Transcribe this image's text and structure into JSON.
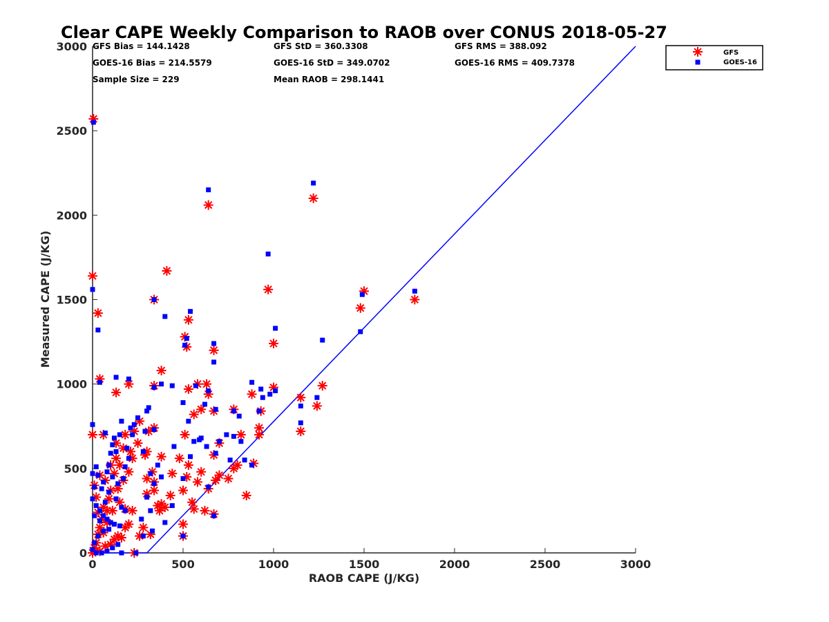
{
  "chart_data": {
    "type": "scatter",
    "title": "Clear CAPE Weekly Comparison to RAOB over CONUS 2018-05-27",
    "xlabel": "RAOB CAPE (J/KG)",
    "ylabel": "Measured CAPE (J/KG)",
    "xlim": [
      0,
      3000
    ],
    "ylim": [
      0,
      3000
    ],
    "x_ticks": [
      "0",
      "500",
      "1000",
      "1500",
      "2000",
      "2500",
      "3000"
    ],
    "y_ticks": [
      "0",
      "500",
      "1000",
      "1500",
      "2000",
      "2500",
      "3000"
    ],
    "grid": false,
    "legend_placement": "top-right",
    "stats": [
      [
        "GFS Bias = 144.1428",
        "GFS StD = 360.3308",
        "GFS RMS = 388.092"
      ],
      [
        "GOES-16 Bias = 214.5579",
        "GOES-16 StD = 349.0702",
        "GOES-16 RMS = 409.7378"
      ],
      [
        "Sample Size = 229",
        "Mean RAOB = 298.1441",
        ""
      ]
    ],
    "reference_line": {
      "color": "#0000ff",
      "points": [
        [
          0,
          0
        ],
        [
          300,
          0
        ],
        [
          3000,
          3000
        ]
      ]
    },
    "series": [
      {
        "name": "GFS",
        "marker": "asterisk",
        "color": "#ff0000",
        "points": [
          [
            5,
            2570
          ],
          [
            0,
            1640
          ],
          [
            30,
            1420
          ],
          [
            40,
            1030
          ],
          [
            130,
            950
          ],
          [
            200,
            1000
          ],
          [
            0,
            700
          ],
          [
            60,
            700
          ],
          [
            410,
            1670
          ],
          [
            340,
            1500
          ],
          [
            380,
            1080
          ],
          [
            340,
            990
          ],
          [
            530,
            1380
          ],
          [
            510,
            1280
          ],
          [
            520,
            1220
          ],
          [
            580,
            1000
          ],
          [
            640,
            2060
          ],
          [
            670,
            1200
          ],
          [
            630,
            1000
          ],
          [
            530,
            970
          ],
          [
            640,
            940
          ],
          [
            600,
            850
          ],
          [
            670,
            840
          ],
          [
            560,
            820
          ],
          [
            970,
            1560
          ],
          [
            1000,
            1240
          ],
          [
            1000,
            980
          ],
          [
            880,
            940
          ],
          [
            930,
            840
          ],
          [
            780,
            850
          ],
          [
            820,
            700
          ],
          [
            920,
            700
          ],
          [
            920,
            740
          ],
          [
            1150,
            920
          ],
          [
            1270,
            990
          ],
          [
            1240,
            870
          ],
          [
            1150,
            720
          ],
          [
            1500,
            1550
          ],
          [
            1480,
            1450
          ],
          [
            1220,
            2100
          ],
          [
            1780,
            1500
          ],
          [
            850,
            340
          ],
          [
            890,
            530
          ],
          [
            800,
            520
          ],
          [
            780,
            500
          ],
          [
            750,
            440
          ],
          [
            700,
            460
          ],
          [
            680,
            430
          ],
          [
            670,
            580
          ],
          [
            700,
            650
          ],
          [
            670,
            230
          ],
          [
            620,
            250
          ],
          [
            640,
            380
          ],
          [
            600,
            480
          ],
          [
            580,
            420
          ],
          [
            550,
            300
          ],
          [
            560,
            260
          ],
          [
            500,
            370
          ],
          [
            520,
            450
          ],
          [
            530,
            520
          ],
          [
            510,
            700
          ],
          [
            500,
            170
          ],
          [
            500,
            100
          ],
          [
            440,
            470
          ],
          [
            430,
            340
          ],
          [
            400,
            270
          ],
          [
            380,
            570
          ],
          [
            340,
            740
          ],
          [
            310,
            720
          ],
          [
            300,
            600
          ],
          [
            330,
            480
          ],
          [
            290,
            580
          ],
          [
            300,
            440
          ],
          [
            340,
            420
          ],
          [
            340,
            370
          ],
          [
            300,
            350
          ],
          [
            320,
            110
          ],
          [
            280,
            150
          ],
          [
            260,
            100
          ],
          [
            230,
            0
          ],
          [
            250,
            650
          ],
          [
            220,
            560
          ],
          [
            200,
            480
          ],
          [
            170,
            430
          ],
          [
            150,
            520
          ],
          [
            170,
            620
          ],
          [
            130,
            560
          ],
          [
            120,
            470
          ],
          [
            100,
            370
          ],
          [
            140,
            380
          ],
          [
            90,
            320
          ],
          [
            80,
            250
          ],
          [
            60,
            270
          ],
          [
            50,
            200
          ],
          [
            40,
            150
          ],
          [
            30,
            110
          ],
          [
            20,
            60
          ],
          [
            10,
            30
          ],
          [
            0,
            0
          ],
          [
            40,
            10
          ],
          [
            70,
            40
          ],
          [
            100,
            50
          ],
          [
            120,
            80
          ],
          [
            140,
            100
          ],
          [
            160,
            90
          ],
          [
            180,
            150
          ],
          [
            200,
            170
          ],
          [
            220,
            250
          ],
          [
            180,
            260
          ],
          [
            150,
            300
          ],
          [
            110,
            250
          ],
          [
            80,
            180
          ],
          [
            60,
            120
          ],
          [
            30,
            240
          ],
          [
            20,
            330
          ],
          [
            10,
            400
          ],
          [
            40,
            460
          ],
          [
            70,
            430
          ],
          [
            100,
            520
          ],
          [
            130,
            650
          ],
          [
            180,
            700
          ],
          [
            230,
            720
          ],
          [
            260,
            780
          ],
          [
            210,
            600
          ],
          [
            380,
            290
          ],
          [
            370,
            250
          ],
          [
            360,
            280
          ],
          [
            480,
            560
          ]
        ]
      },
      {
        "name": "GOES-16",
        "marker": "square",
        "color": "#0000ff",
        "points": [
          [
            5,
            2550
          ],
          [
            0,
            1560
          ],
          [
            30,
            1320
          ],
          [
            40,
            1010
          ],
          [
            130,
            1040
          ],
          [
            200,
            1030
          ],
          [
            0,
            760
          ],
          [
            70,
            710
          ],
          [
            340,
            1500
          ],
          [
            400,
            1400
          ],
          [
            380,
            1000
          ],
          [
            440,
            990
          ],
          [
            340,
            980
          ],
          [
            540,
            1430
          ],
          [
            520,
            1270
          ],
          [
            510,
            1230
          ],
          [
            640,
            2150
          ],
          [
            670,
            1240
          ],
          [
            670,
            1130
          ],
          [
            570,
            990
          ],
          [
            640,
            960
          ],
          [
            620,
            880
          ],
          [
            680,
            850
          ],
          [
            590,
            670
          ],
          [
            970,
            1770
          ],
          [
            1010,
            1330
          ],
          [
            980,
            940
          ],
          [
            1010,
            960
          ],
          [
            880,
            1010
          ],
          [
            930,
            970
          ],
          [
            940,
            920
          ],
          [
            780,
            840
          ],
          [
            810,
            810
          ],
          [
            920,
            840
          ],
          [
            1150,
            870
          ],
          [
            1240,
            920
          ],
          [
            1150,
            770
          ],
          [
            1270,
            1260
          ],
          [
            1220,
            2190
          ],
          [
            1490,
            1530
          ],
          [
            1480,
            1310
          ],
          [
            1780,
            1550
          ],
          [
            840,
            550
          ],
          [
            880,
            520
          ],
          [
            820,
            660
          ],
          [
            780,
            690
          ],
          [
            740,
            700
          ],
          [
            700,
            660
          ],
          [
            680,
            590
          ],
          [
            760,
            550
          ],
          [
            670,
            220
          ],
          [
            640,
            390
          ],
          [
            630,
            630
          ],
          [
            600,
            680
          ],
          [
            560,
            660
          ],
          [
            540,
            570
          ],
          [
            530,
            780
          ],
          [
            500,
            890
          ],
          [
            500,
            440
          ],
          [
            500,
            100
          ],
          [
            450,
            630
          ],
          [
            440,
            280
          ],
          [
            400,
            180
          ],
          [
            380,
            450
          ],
          [
            360,
            520
          ],
          [
            340,
            410
          ],
          [
            340,
            730
          ],
          [
            310,
            860
          ],
          [
            300,
            840
          ],
          [
            290,
            720
          ],
          [
            280,
            600
          ],
          [
            320,
            470
          ],
          [
            300,
            330
          ],
          [
            320,
            250
          ],
          [
            330,
            130
          ],
          [
            280,
            100
          ],
          [
            270,
            200
          ],
          [
            240,
            0
          ],
          [
            250,
            800
          ],
          [
            230,
            760
          ],
          [
            210,
            740
          ],
          [
            220,
            700
          ],
          [
            190,
            620
          ],
          [
            200,
            560
          ],
          [
            180,
            510
          ],
          [
            170,
            440
          ],
          [
            160,
            780
          ],
          [
            150,
            700
          ],
          [
            120,
            680
          ],
          [
            110,
            640
          ],
          [
            100,
            590
          ],
          [
            130,
            600
          ],
          [
            90,
            520
          ],
          [
            80,
            480
          ],
          [
            110,
            450
          ],
          [
            140,
            410
          ],
          [
            60,
            420
          ],
          [
            50,
            380
          ],
          [
            30,
            460
          ],
          [
            20,
            510
          ],
          [
            0,
            470
          ],
          [
            10,
            390
          ],
          [
            0,
            320
          ],
          [
            20,
            280
          ],
          [
            40,
            250
          ],
          [
            60,
            220
          ],
          [
            80,
            200
          ],
          [
            100,
            180
          ],
          [
            120,
            170
          ],
          [
            150,
            160
          ],
          [
            90,
            140
          ],
          [
            60,
            130
          ],
          [
            30,
            100
          ],
          [
            10,
            60
          ],
          [
            0,
            20
          ],
          [
            20,
            0
          ],
          [
            50,
            0
          ],
          [
            80,
            10
          ],
          [
            110,
            30
          ],
          [
            140,
            50
          ],
          [
            160,
            0
          ],
          [
            130,
            320
          ],
          [
            90,
            360
          ],
          [
            70,
            300
          ],
          [
            40,
            190
          ],
          [
            10,
            220
          ],
          [
            160,
            270
          ],
          [
            180,
            250
          ]
        ]
      }
    ]
  }
}
